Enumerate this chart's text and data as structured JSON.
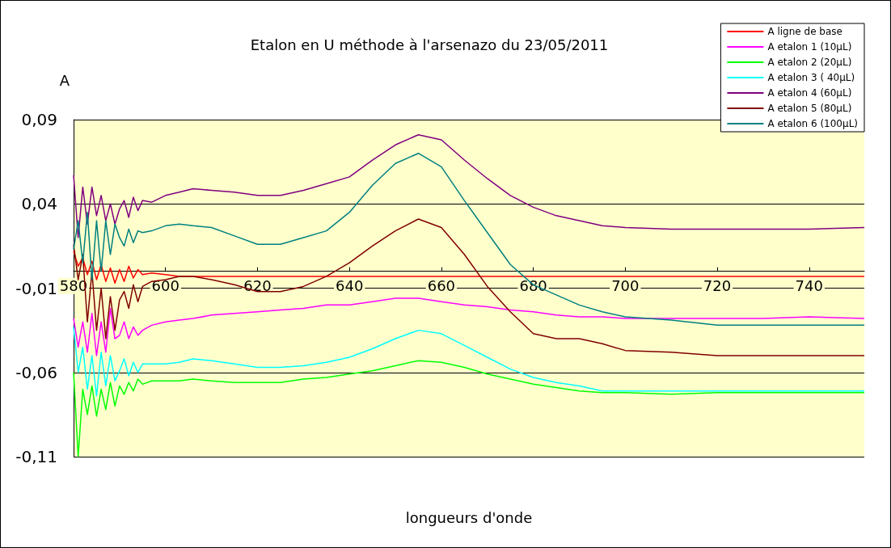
{
  "chart_data": {
    "type": "line",
    "title": "Etalon en U méthode à l'arsenazo du 23/05/2011",
    "xlabel": "longueurs d'onde",
    "ylabel": "A",
    "x": [
      580,
      581,
      582,
      583,
      584,
      585,
      586,
      587,
      588,
      589,
      590,
      591,
      592,
      593,
      594,
      595,
      597,
      600,
      603,
      606,
      610,
      615,
      620,
      625,
      630,
      635,
      640,
      645,
      650,
      655,
      660,
      665,
      670,
      675,
      680,
      685,
      690,
      695,
      700,
      710,
      720,
      730,
      740,
      752
    ],
    "series": [
      {
        "name": "A ligne de base",
        "color": "#ff0000",
        "values": [
          0.012,
          0.003,
          0.008,
          -0.002,
          0.006,
          -0.005,
          0.004,
          -0.006,
          0.002,
          -0.007,
          0.001,
          -0.006,
          0.003,
          -0.004,
          0.001,
          -0.002,
          -0.001,
          -0.002,
          -0.003,
          -0.003,
          -0.003,
          -0.003,
          -0.003,
          -0.003,
          -0.003,
          -0.003,
          -0.003,
          -0.003,
          -0.003,
          -0.003,
          -0.003,
          -0.003,
          -0.003,
          -0.003,
          -0.003,
          -0.003,
          -0.003,
          -0.003,
          -0.003,
          -0.003,
          -0.003,
          -0.003,
          -0.003,
          -0.003
        ]
      },
      {
        "name": "A etalon 1 (10µL)",
        "color": "#ff00ff",
        "values": [
          -0.028,
          -0.045,
          -0.03,
          -0.048,
          -0.025,
          -0.05,
          -0.03,
          -0.048,
          -0.022,
          -0.04,
          -0.038,
          -0.03,
          -0.04,
          -0.033,
          -0.038,
          -0.035,
          -0.032,
          -0.03,
          -0.029,
          -0.028,
          -0.026,
          -0.025,
          -0.024,
          -0.023,
          -0.022,
          -0.02,
          -0.02,
          -0.018,
          -0.016,
          -0.016,
          -0.018,
          -0.02,
          -0.021,
          -0.023,
          -0.024,
          -0.026,
          -0.027,
          -0.027,
          -0.028,
          -0.028,
          -0.028,
          -0.028,
          -0.027,
          -0.028
        ]
      },
      {
        "name": "A etalon 2 (20µL)",
        "color": "#00ff00",
        "values": [
          -0.06,
          -0.11,
          -0.07,
          -0.085,
          -0.068,
          -0.086,
          -0.07,
          -0.082,
          -0.066,
          -0.08,
          -0.068,
          -0.073,
          -0.066,
          -0.071,
          -0.064,
          -0.067,
          -0.065,
          -0.065,
          -0.065,
          -0.064,
          -0.065,
          -0.066,
          -0.066,
          -0.066,
          -0.064,
          -0.063,
          -0.061,
          -0.059,
          -0.056,
          -0.053,
          -0.054,
          -0.057,
          -0.061,
          -0.064,
          -0.067,
          -0.069,
          -0.071,
          -0.072,
          -0.072,
          -0.073,
          -0.072,
          -0.072,
          -0.072,
          -0.072
        ]
      },
      {
        "name": "A etalon 3 ( 40µL)",
        "color": "#00ffff",
        "values": [
          -0.033,
          -0.06,
          -0.045,
          -0.07,
          -0.05,
          -0.074,
          -0.048,
          -0.068,
          -0.05,
          -0.065,
          -0.059,
          -0.052,
          -0.062,
          -0.054,
          -0.06,
          -0.055,
          -0.055,
          -0.055,
          -0.054,
          -0.052,
          -0.053,
          -0.055,
          -0.057,
          -0.057,
          -0.056,
          -0.054,
          -0.051,
          -0.046,
          -0.04,
          -0.035,
          -0.037,
          -0.044,
          -0.051,
          -0.058,
          -0.063,
          -0.066,
          -0.068,
          -0.071,
          -0.071,
          -0.071,
          -0.071,
          -0.071,
          -0.071,
          -0.071
        ]
      },
      {
        "name": "A etalon 4 (60µL)",
        "color": "#800080",
        "values": [
          0.057,
          0.02,
          0.05,
          0.028,
          0.05,
          0.033,
          0.045,
          0.03,
          0.04,
          0.028,
          0.037,
          0.042,
          0.032,
          0.044,
          0.036,
          0.042,
          0.041,
          0.045,
          0.047,
          0.049,
          0.048,
          0.047,
          0.045,
          0.045,
          0.048,
          0.052,
          0.056,
          0.066,
          0.075,
          0.081,
          0.078,
          0.066,
          0.055,
          0.045,
          0.038,
          0.033,
          0.03,
          0.027,
          0.026,
          0.025,
          0.025,
          0.025,
          0.025,
          0.026
        ]
      },
      {
        "name": "A etalon 5 (80µL)",
        "color": "#800000",
        "values": [
          0.016,
          -0.005,
          0.01,
          -0.03,
          0.0,
          -0.035,
          -0.01,
          -0.04,
          -0.015,
          -0.035,
          -0.017,
          -0.012,
          -0.022,
          -0.008,
          -0.018,
          -0.009,
          -0.006,
          -0.005,
          -0.003,
          -0.003,
          -0.005,
          -0.008,
          -0.012,
          -0.012,
          -0.009,
          -0.003,
          0.005,
          0.015,
          0.024,
          0.031,
          0.026,
          0.01,
          -0.009,
          -0.024,
          -0.037,
          -0.04,
          -0.04,
          -0.043,
          -0.047,
          -0.048,
          -0.05,
          -0.05,
          -0.05,
          -0.05
        ]
      },
      {
        "name": "A etalon 6 (100µL)",
        "color": "#008080",
        "values": [
          0.013,
          0.03,
          0.005,
          0.035,
          -0.005,
          0.03,
          0.0,
          0.03,
          0.01,
          0.028,
          0.02,
          0.015,
          0.025,
          0.017,
          0.024,
          0.023,
          0.024,
          0.027,
          0.028,
          0.027,
          0.026,
          0.021,
          0.016,
          0.016,
          0.02,
          0.024,
          0.035,
          0.051,
          0.064,
          0.07,
          0.062,
          0.042,
          0.023,
          0.004,
          -0.008,
          -0.014,
          -0.02,
          -0.024,
          -0.027,
          -0.029,
          -0.032,
          -0.032,
          -0.032,
          -0.032
        ]
      }
    ],
    "xlim": [
      580,
      752
    ],
    "xticks": [
      580,
      600,
      620,
      640,
      660,
      680,
      700,
      720,
      740
    ],
    "ylim": [
      -0.11,
      0.09
    ],
    "yticks": [
      {
        "value": -0.11,
        "label": "-0,11"
      },
      {
        "value": -0.06,
        "label": "-0,06"
      },
      {
        "value": -0.01,
        "label": "-0,01"
      },
      {
        "value": 0.04,
        "label": "0,04"
      },
      {
        "value": 0.09,
        "label": "0,09"
      }
    ],
    "grid": "y",
    "legend": "top right",
    "marker": "none",
    "line_style": "solid"
  }
}
